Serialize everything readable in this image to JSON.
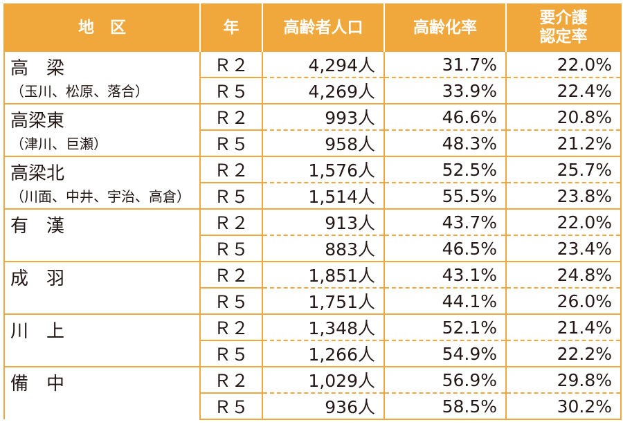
{
  "headers": {
    "area": "地　区",
    "year": "年",
    "population": "高齢者人口",
    "rate": "高齢化率",
    "care_line1": "要介護",
    "care_line2": "認定率"
  },
  "rows": [
    {
      "name": "高　梁",
      "sub": "（玉川、松原、落合）",
      "data": [
        {
          "year": "Ｒ２",
          "population": "4,294人",
          "rate": "31.7%",
          "care": "22.0%"
        },
        {
          "year": "Ｒ５",
          "population": "4,269人",
          "rate": "33.9%",
          "care": "22.4%"
        }
      ]
    },
    {
      "name": "高梁東",
      "sub": "（津川、巨瀬）",
      "data": [
        {
          "year": "Ｒ２",
          "population": "993人",
          "rate": "46.6%",
          "care": "20.8%"
        },
        {
          "year": "Ｒ５",
          "population": "958人",
          "rate": "48.3%",
          "care": "21.2%"
        }
      ]
    },
    {
      "name": "高梁北",
      "sub": "（川面、中井、宇治、高倉）",
      "data": [
        {
          "year": "Ｒ２",
          "population": "1,576人",
          "rate": "52.5%",
          "care": "25.7%"
        },
        {
          "year": "Ｒ５",
          "population": "1,514人",
          "rate": "55.5%",
          "care": "23.8%"
        }
      ]
    },
    {
      "name": "有　漢",
      "sub": "",
      "data": [
        {
          "year": "Ｒ２",
          "population": "913人",
          "rate": "43.7%",
          "care": "22.0%"
        },
        {
          "year": "Ｒ５",
          "population": "883人",
          "rate": "46.5%",
          "care": "23.4%"
        }
      ]
    },
    {
      "name": "成　羽",
      "sub": "",
      "data": [
        {
          "year": "Ｒ２",
          "population": "1,851人",
          "rate": "43.1%",
          "care": "24.8%"
        },
        {
          "year": "Ｒ５",
          "population": "1,751人",
          "rate": "44.1%",
          "care": "26.0%"
        }
      ]
    },
    {
      "name": "川　上",
      "sub": "",
      "data": [
        {
          "year": "Ｒ２",
          "population": "1,348人",
          "rate": "52.1%",
          "care": "21.4%"
        },
        {
          "year": "Ｒ５",
          "population": "1,266人",
          "rate": "54.9%",
          "care": "22.2%"
        }
      ]
    },
    {
      "name": "備　中",
      "sub": "",
      "data": [
        {
          "year": "Ｒ２",
          "population": "1,029人",
          "rate": "56.9%",
          "care": "29.8%"
        },
        {
          "year": "Ｒ５",
          "population": "936人",
          "rate": "58.5%",
          "care": "30.2%"
        }
      ]
    }
  ],
  "colors": {
    "header_bg": "#f0a83c",
    "header_text": "#ffffff",
    "border": "#f0a83c",
    "text": "#231815"
  }
}
